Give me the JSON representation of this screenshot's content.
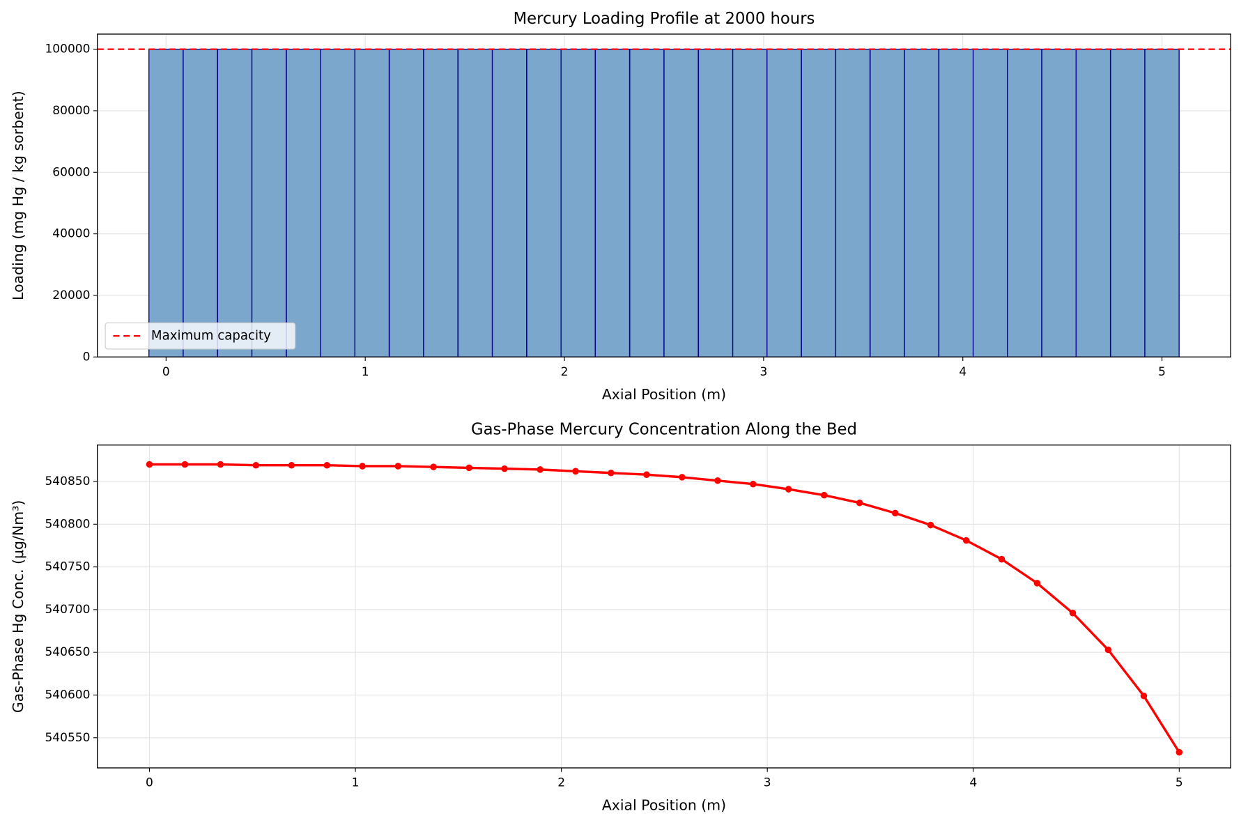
{
  "chart_data": [
    {
      "type": "bar",
      "title": "Mercury Loading Profile at 2000 hours",
      "x_label": "Axial Position (m)",
      "y_label": "Loading (mg Hg / kg sorbent)",
      "x": [
        0,
        0.172,
        0.345,
        0.517,
        0.69,
        0.862,
        1.034,
        1.207,
        1.379,
        1.552,
        1.724,
        1.897,
        2.069,
        2.241,
        2.414,
        2.586,
        2.759,
        2.931,
        3.103,
        3.276,
        3.448,
        3.621,
        3.793,
        3.966,
        4.138,
        4.31,
        4.483,
        4.655,
        4.828,
        5
      ],
      "values": [
        100000,
        100000,
        100000,
        100000,
        100000,
        100000,
        100000,
        100000,
        100000,
        100000,
        100000,
        100000,
        100000,
        100000,
        100000,
        100000,
        100000,
        100000,
        100000,
        100000,
        100000,
        100000,
        100000,
        100000,
        100000,
        100000,
        100000,
        100000,
        100000,
        100000
      ],
      "color": "#7ba7cc",
      "edge_color": "#00008b",
      "xlim": [
        -0.345,
        5.345
      ],
      "xticks": [
        0,
        1,
        2,
        3,
        4,
        5
      ],
      "ylim": [
        0,
        104900
      ],
      "yticks": [
        0,
        20000,
        40000,
        60000,
        80000,
        100000
      ],
      "grid": true,
      "reference_line": {
        "name": "Maximum capacity",
        "value": 100000,
        "color": "#ff0000",
        "style": "dashed"
      },
      "legend": "lower left"
    },
    {
      "type": "line",
      "title": "Gas-Phase Mercury Concentration Along the Bed",
      "x_label": "Axial Position (m)",
      "y_label": "Gas-Phase Hg Conc. (μg/Nm³)",
      "x": [
        0,
        0.172,
        0.345,
        0.517,
        0.69,
        0.862,
        1.034,
        1.207,
        1.379,
        1.552,
        1.724,
        1.897,
        2.069,
        2.241,
        2.414,
        2.586,
        2.759,
        2.931,
        3.103,
        3.276,
        3.448,
        3.621,
        3.793,
        3.966,
        4.138,
        4.31,
        4.483,
        4.655,
        4.828,
        5
      ],
      "values": [
        540870,
        540870,
        540870,
        540869,
        540869,
        540869,
        540868,
        540868,
        540867,
        540866,
        540865,
        540864,
        540862,
        540860,
        540858,
        540855,
        540851,
        540847,
        540841,
        540834,
        540825,
        540813,
        540799,
        540781,
        540759,
        540731,
        540696,
        540653,
        540599,
        540533
      ],
      "color": "#ff0000",
      "xlim": [
        -0.253,
        5.25
      ],
      "xticks": [
        0,
        1,
        2,
        3,
        4,
        5
      ],
      "ylim": [
        540514.7,
        540892.7
      ],
      "yticks": [
        540550,
        540600,
        540650,
        540700,
        540750,
        540800,
        540850
      ],
      "grid": true
    }
  ]
}
